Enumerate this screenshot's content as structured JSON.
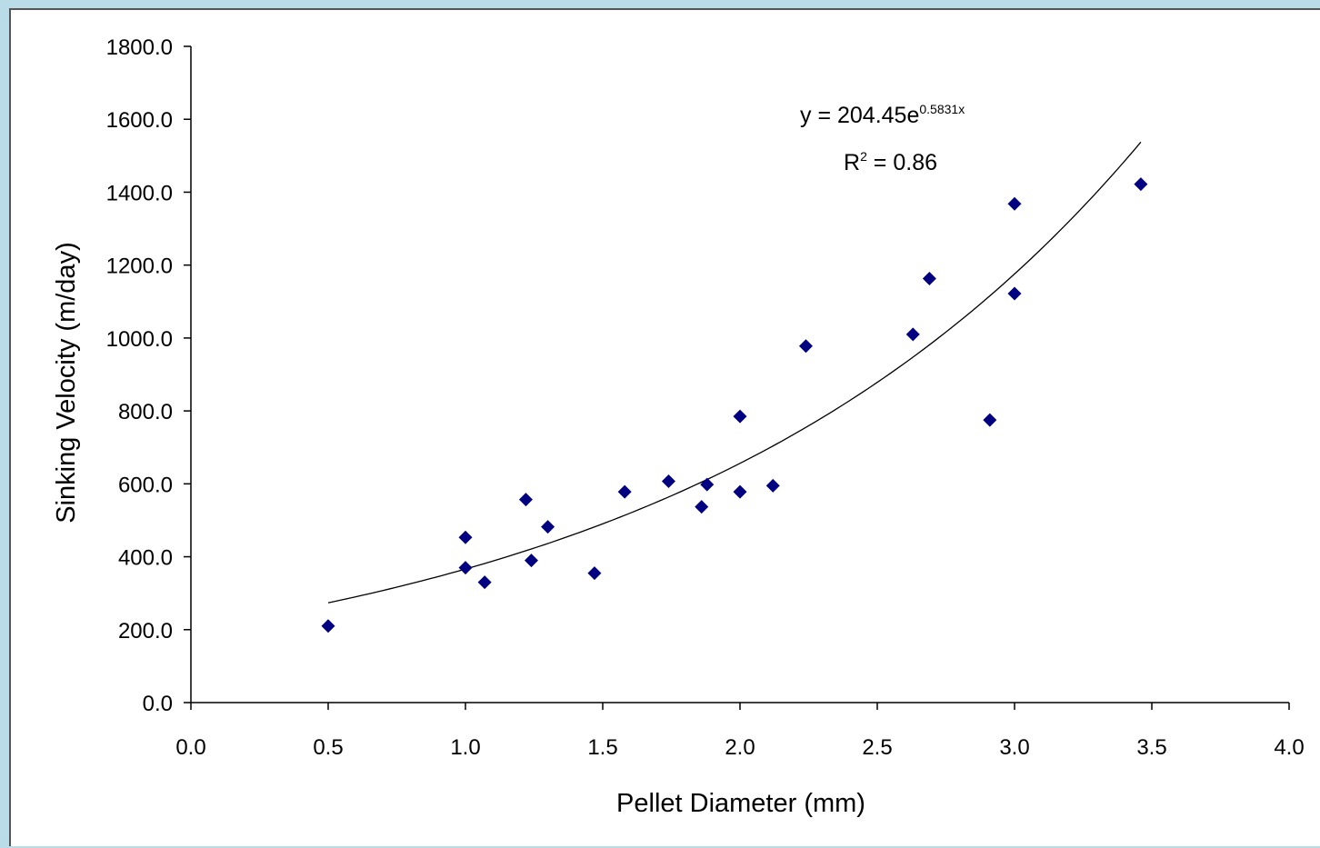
{
  "colors": {
    "marker": "#000080",
    "trendline": "#000000",
    "background_outer": "#b9dce8"
  },
  "chart_data": {
    "type": "scatter",
    "xlabel": "Pellet Diameter (mm)",
    "ylabel": "Sinking Velocity (m/day)",
    "xlim": [
      0.0,
      4.0
    ],
    "ylim": [
      0.0,
      1800.0
    ],
    "x_ticks": [
      "0.0",
      "0.5",
      "1.0",
      "1.5",
      "2.0",
      "2.5",
      "3.0",
      "3.5",
      "4.0"
    ],
    "y_ticks": [
      "0.0",
      "200.0",
      "400.0",
      "600.0",
      "800.0",
      "1000.0",
      "1200.0",
      "1400.0",
      "1600.0",
      "1800.0"
    ],
    "grid": false,
    "points": [
      {
        "x": 0.5,
        "y": 210
      },
      {
        "x": 1.0,
        "y": 453
      },
      {
        "x": 1.0,
        "y": 370
      },
      {
        "x": 1.07,
        "y": 330
      },
      {
        "x": 1.22,
        "y": 557
      },
      {
        "x": 1.24,
        "y": 390
      },
      {
        "x": 1.3,
        "y": 482
      },
      {
        "x": 1.47,
        "y": 355
      },
      {
        "x": 1.58,
        "y": 578
      },
      {
        "x": 1.74,
        "y": 607
      },
      {
        "x": 1.86,
        "y": 537
      },
      {
        "x": 1.88,
        "y": 598
      },
      {
        "x": 2.0,
        "y": 785
      },
      {
        "x": 2.0,
        "y": 578
      },
      {
        "x": 2.12,
        "y": 595
      },
      {
        "x": 2.24,
        "y": 978
      },
      {
        "x": 2.63,
        "y": 1010
      },
      {
        "x": 2.69,
        "y": 1163
      },
      {
        "x": 2.91,
        "y": 775
      },
      {
        "x": 3.0,
        "y": 1368
      },
      {
        "x": 3.0,
        "y": 1122
      },
      {
        "x": 3.46,
        "y": 1422
      }
    ],
    "trendline": {
      "type": "exponential",
      "a": 204.45,
      "b": 0.5831,
      "x_range": [
        0.5,
        3.46
      ],
      "equation_prefix": "y = 204.45e",
      "equation_exponent": "0.5831x",
      "r2_base": "R",
      "r2_sup": "2",
      "r2_value": " = 0.86"
    }
  }
}
